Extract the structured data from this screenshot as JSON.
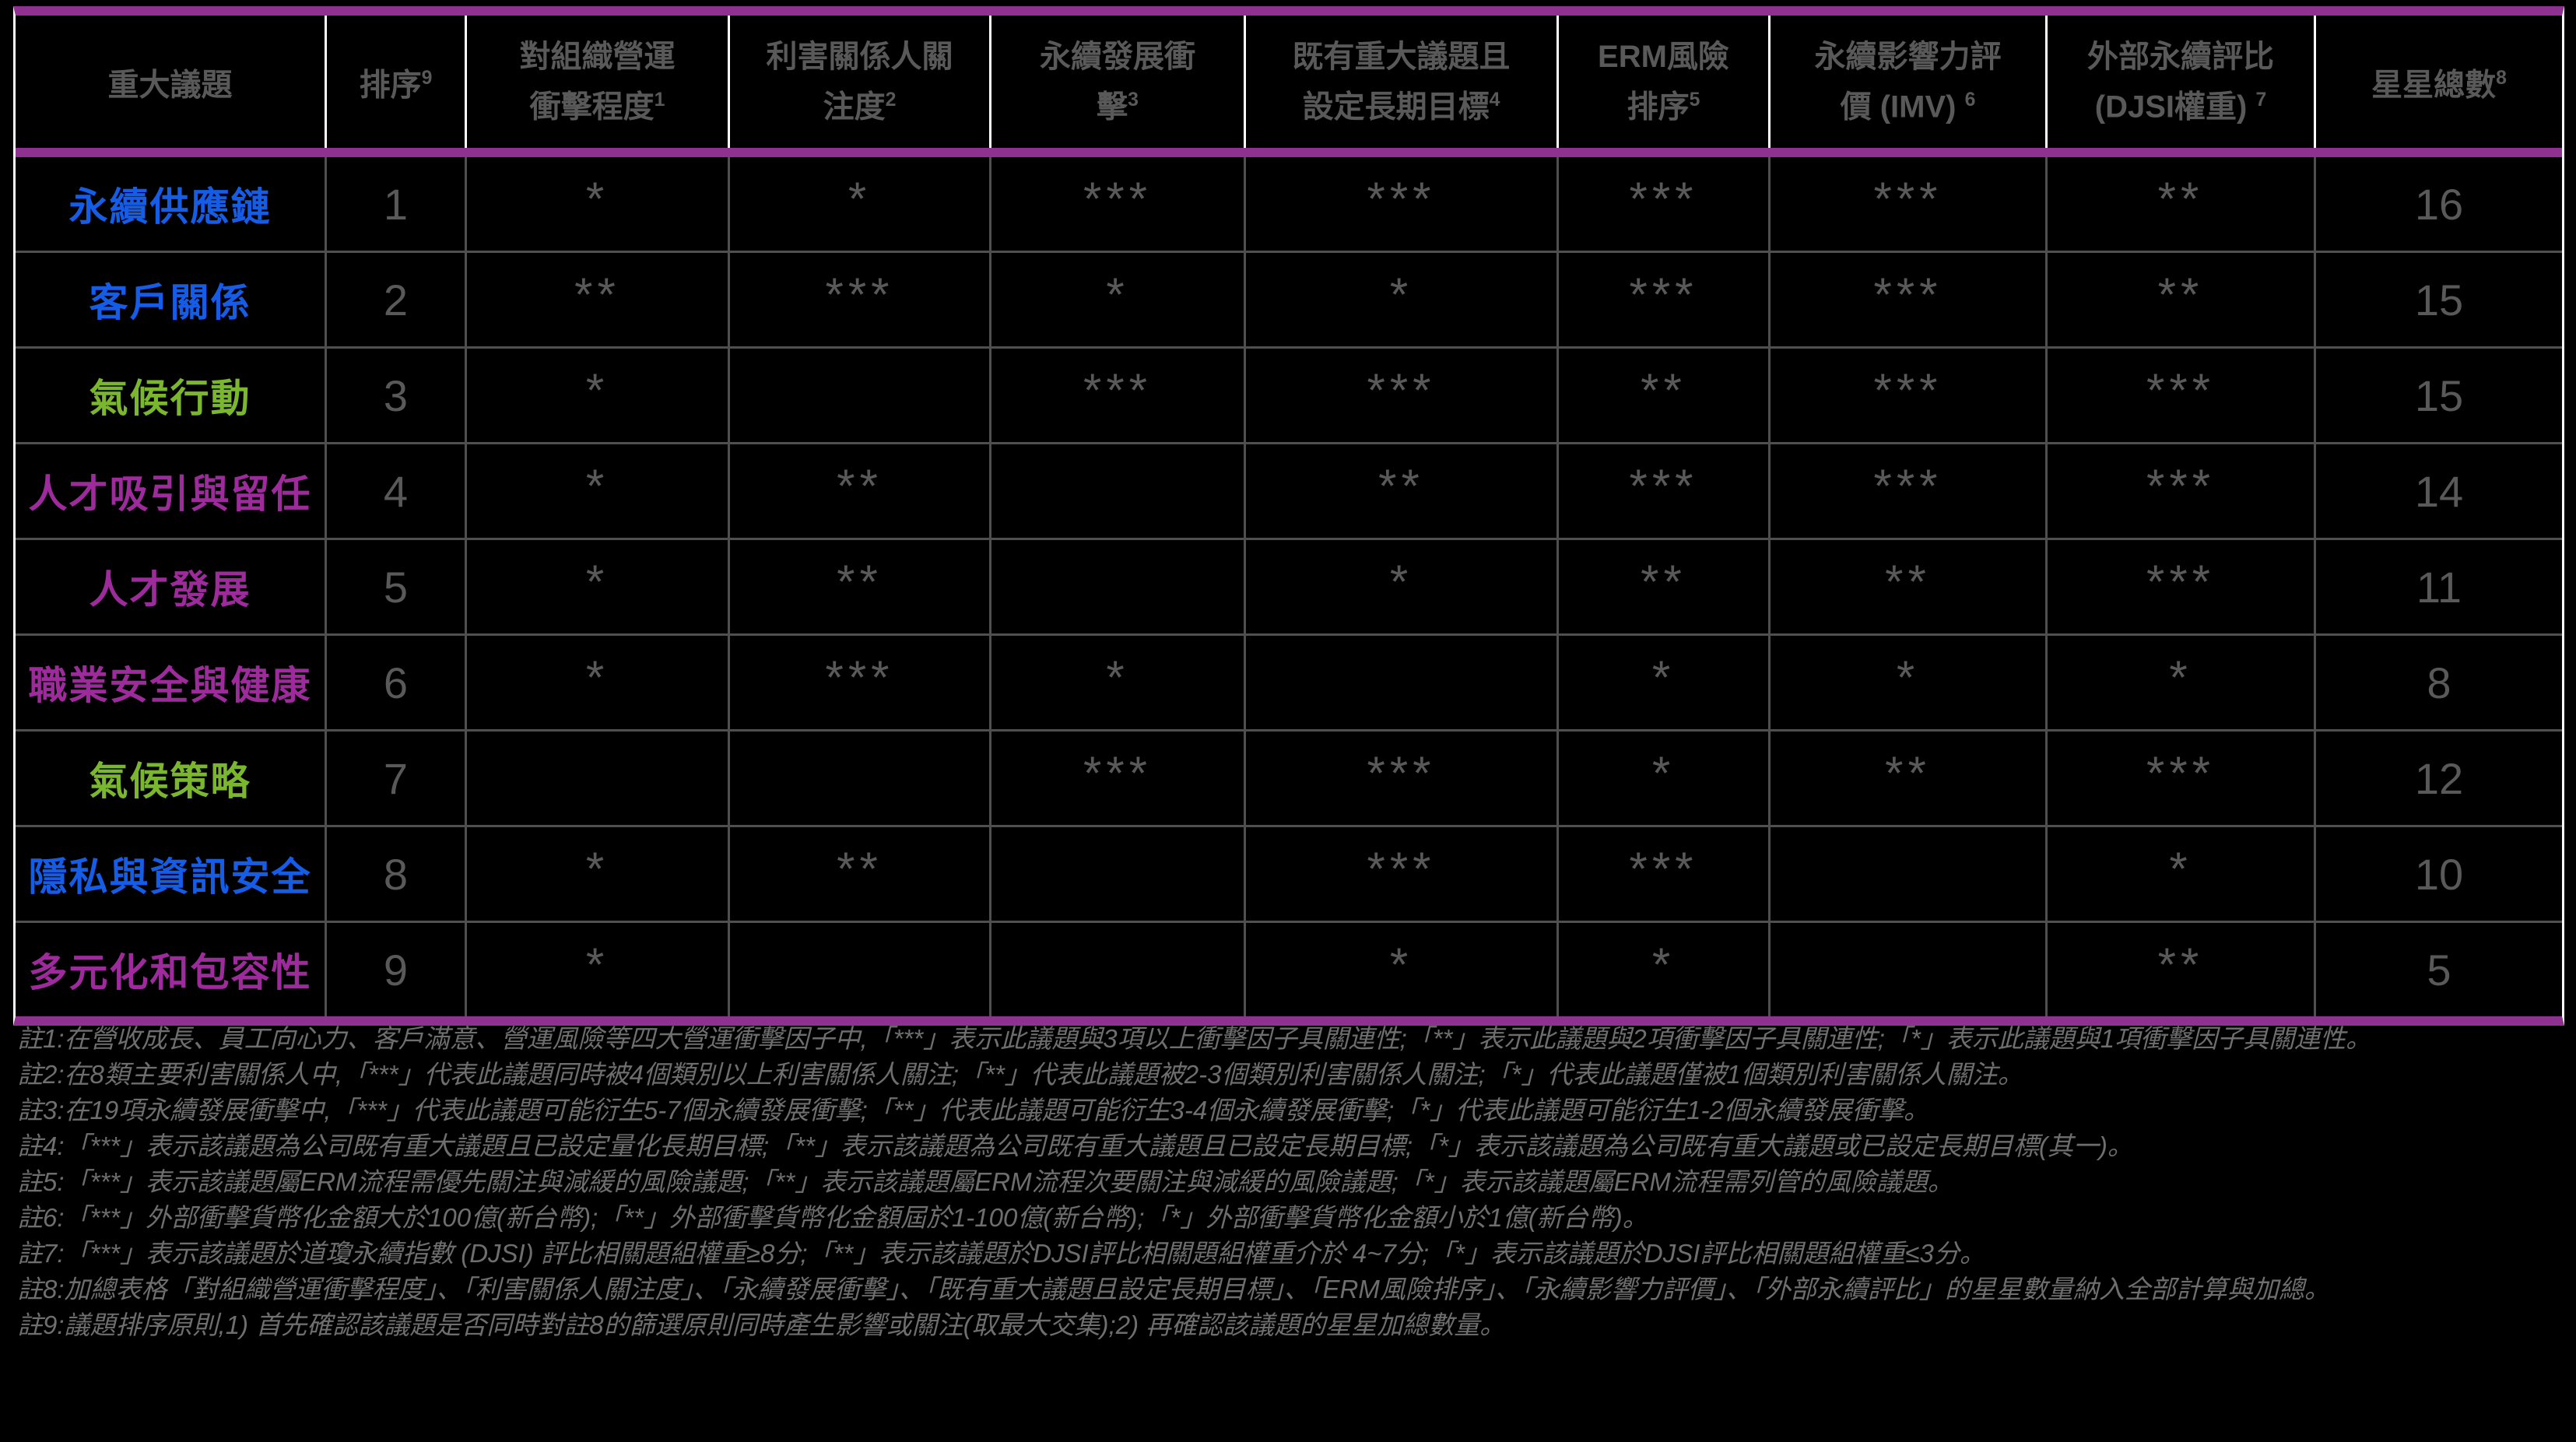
{
  "colors": {
    "accent_purple": "#8f3190",
    "topic_blue": "#155ce6",
    "topic_green": "#7ab72e",
    "topic_magenta": "#9e2b9b",
    "text_gray": "#595959",
    "footnote_gray": "#6e6e6e"
  },
  "table": {
    "headers": [
      {
        "l1": "",
        "l2": "重大議題",
        "sup": ""
      },
      {
        "l1": "",
        "l2": "排序",
        "sup": "9"
      },
      {
        "l1": "對組織營運",
        "l2": "衝擊程度",
        "sup": "1"
      },
      {
        "l1": "利害關係人關",
        "l2": "注度",
        "sup": "2"
      },
      {
        "l1": "永續發展衝",
        "l2": "擊",
        "sup": "3"
      },
      {
        "l1": "既有重大議題且",
        "l2": "設定長期目標",
        "sup": "4"
      },
      {
        "l1": "ERM風險",
        "l2": "排序",
        "sup": "5"
      },
      {
        "l1": "永續影響力評",
        "l2": "價 (IMV) ",
        "sup": "6"
      },
      {
        "l1": "外部永續評比",
        "l2": "(DJSI權重) ",
        "sup": "7"
      },
      {
        "l1": "",
        "l2": "星星總數",
        "sup": "8"
      }
    ],
    "rows": [
      {
        "topic": "永續供應鏈",
        "color": "blue",
        "rank": "1",
        "stars": [
          "*",
          "*",
          "***",
          "***",
          "***",
          "***",
          "**"
        ],
        "total": "16"
      },
      {
        "topic": "客戶關係",
        "color": "blue",
        "rank": "2",
        "stars": [
          "**",
          "***",
          "*",
          "*",
          "***",
          "***",
          "**"
        ],
        "total": "15"
      },
      {
        "topic": "氣候行動",
        "color": "green",
        "rank": "3",
        "stars": [
          "*",
          "",
          "***",
          "***",
          "**",
          "***",
          "***"
        ],
        "total": "15"
      },
      {
        "topic": "人才吸引與留任",
        "color": "magenta",
        "rank": "4",
        "stars": [
          "*",
          "**",
          "",
          "**",
          "***",
          "***",
          "***"
        ],
        "total": "14"
      },
      {
        "topic": "人才發展",
        "color": "magenta",
        "rank": "5",
        "stars": [
          "*",
          "**",
          "",
          "*",
          "**",
          "**",
          "***"
        ],
        "total": "11"
      },
      {
        "topic": "職業安全與健康",
        "color": "magenta",
        "rank": "6",
        "stars": [
          "*",
          "***",
          "*",
          "",
          "*",
          "*",
          "*"
        ],
        "total": "8"
      },
      {
        "topic": "氣候策略",
        "color": "green",
        "rank": "7",
        "stars": [
          "",
          "",
          "***",
          "***",
          "*",
          "**",
          "***"
        ],
        "total": "12"
      },
      {
        "topic": "隱私與資訊安全",
        "color": "blue",
        "rank": "8",
        "stars": [
          "*",
          "**",
          "",
          "***",
          "***",
          "",
          "*"
        ],
        "total": "10"
      },
      {
        "topic": "多元化和包容性",
        "color": "magenta",
        "rank": "9",
        "stars": [
          "*",
          "",
          "",
          "*",
          "*",
          "",
          "**"
        ],
        "total": "5"
      }
    ]
  },
  "footnotes": [
    {
      "label": "註1:",
      "text": "在營收成長、員工向心力、客戶滿意、營運風險等四大營運衝擊因子中,「***」表示此議題與3項以上衝擊因子具關連性;「**」表示此議題與2項衝擊因子具關連性;「*」表示此議題與1項衝擊因子具關連性。"
    },
    {
      "label": "註2:",
      "text": "在8類主要利害關係人中,「***」代表此議題同時被4個類別以上利害關係人關注;「**」代表此議題被2-3個類別利害關係人關注;「*」代表此議題僅被1個類別利害關係人關注。"
    },
    {
      "label": "註3:",
      "text": "在19項永續發展衝擊中,「***」代表此議題可能衍生5-7個永續發展衝擊;「**」代表此議題可能衍生3-4個永續發展衝擊;「*」代表此議題可能衍生1-2個永續發展衝擊。"
    },
    {
      "label": "註4:",
      "text": "「***」表示該議題為公司既有重大議題且已設定量化長期目標;「**」表示該議題為公司既有重大議題且已設定長期目標;「*」表示該議題為公司既有重大議題或已設定長期目標(其一)。"
    },
    {
      "label": "註5:",
      "text": "「***」表示該議題屬ERM流程需優先關注與減緩的風險議題;「**」表示該議題屬ERM流程次要關注與減緩的風險議題;「*」表示該議題屬ERM流程需列管的風險議題。"
    },
    {
      "label": "註6:",
      "text": "「***」外部衝擊貨幣化金額大於100億(新台幣);「**」外部衝擊貨幣化金額屆於1-100億(新台幣);「*」外部衝擊貨幣化金額小於1億(新台幣)。"
    },
    {
      "label": "註7:",
      "text": "「***」表示該議題於道瓊永續指數 (DJSI) 評比相關題組權重≥8分;「**」表示該議題於DJSI評比相關題組權重介於 4~7分;「*」表示該議題於DJSI評比相關題組權重≤3分。"
    },
    {
      "label": "註8:",
      "text": "加總表格「對組織營運衝擊程度」、「利害關係人關注度」、「永續發展衝擊」、「既有重大議題且設定長期目標」、「ERM風險排序」、「永續影響力評價」、「外部永續評比」的星星數量納入全部計算與加總。"
    },
    {
      "label": "註9:",
      "text": "議題排序原則,1) 首先確認該議題是否同時對註8的篩選原則同時產生影響或關注(取最大交集);2) 再確認該議題的星星加總數量。"
    }
  ]
}
